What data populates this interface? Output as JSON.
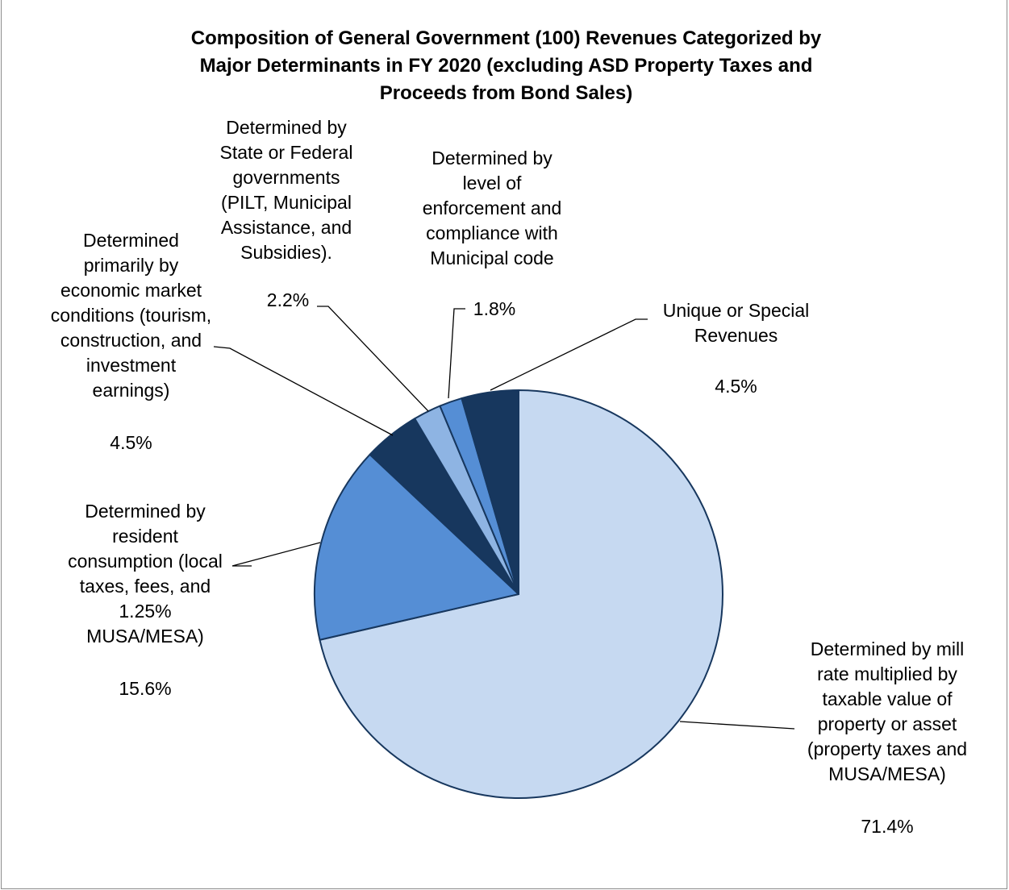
{
  "chart_data": {
    "type": "pie",
    "title_lines": [
      "Composition of General Government (100) Revenues Categorized by",
      "Major Determinants in FY 2020 (excluding ASD Property Taxes and",
      "Proceeds from Bond Sales)"
    ],
    "slices": [
      {
        "label_lines": [
          "Determined by mill",
          "rate multiplied by",
          "taxable value of",
          "property or asset",
          "(property taxes and",
          "MUSA/MESA)"
        ],
        "value": 71.4,
        "percent_label": "71.4%",
        "color": "#c6d9f1"
      },
      {
        "label_lines": [
          "Determined by",
          "resident",
          "consumption (local",
          "taxes, fees, and",
          "1.25%",
          "MUSA/MESA)"
        ],
        "value": 15.6,
        "percent_label": "15.6%",
        "color": "#558ed5"
      },
      {
        "label_lines": [
          "Determined",
          "primarily by",
          "economic market",
          "conditions (tourism,",
          "construction, and",
          "investment",
          "earnings)"
        ],
        "value": 4.5,
        "percent_label": "4.5%",
        "color": "#17375e"
      },
      {
        "label_lines": [
          "Determined by",
          "State or Federal",
          "governments",
          "(PILT, Municipal",
          "Assistance, and",
          "Subsidies)."
        ],
        "value": 2.2,
        "percent_label": "2.2%",
        "color": "#8eb4e3"
      },
      {
        "label_lines": [
          "Determined by",
          "level of",
          "enforcement and",
          "compliance with",
          "Municipal code"
        ],
        "value": 1.8,
        "percent_label": "1.8%",
        "color": "#558ed5"
      },
      {
        "label_lines": [
          "Unique or Special",
          "Revenues"
        ],
        "value": 4.5,
        "percent_label": "4.5%",
        "color": "#17375e"
      }
    ],
    "start_angle_deg": 0,
    "direction": "clockwise",
    "outline_color": "#17375e",
    "legend": "none"
  }
}
